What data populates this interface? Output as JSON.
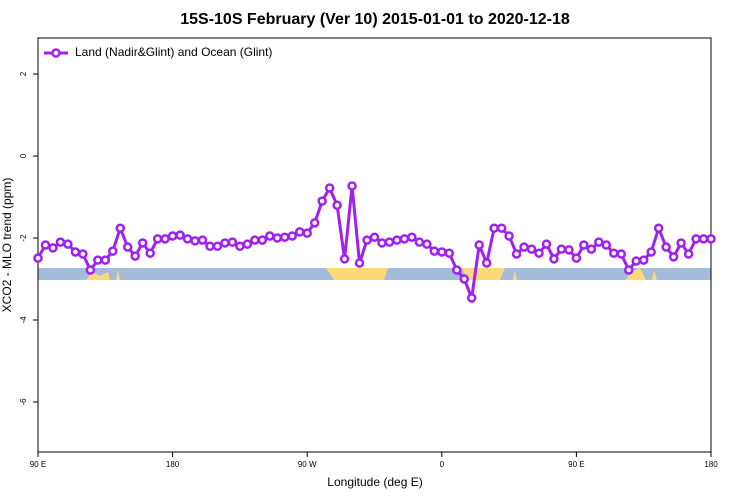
{
  "chart_data": {
    "type": "line",
    "title": "15S-10S February (Ver 10)   2015-01-01 to 2020-12-18",
    "x_label": "Longitude (deg E)",
    "y_label": "XCO2 - MLO trend (ppm)",
    "xlim": [
      90,
      540
    ],
    "ylim": [
      -7.22,
      2.88
    ],
    "xticks": [
      {
        "value": 90,
        "label": "90 E"
      },
      180,
      {
        "value": 270,
        "label": "90 W"
      },
      {
        "value": 360,
        "label": "0"
      },
      {
        "value": 450,
        "label": "90 E"
      },
      180
    ],
    "yticks": [
      2,
      0,
      -2,
      -4,
      -6
    ],
    "legend": "top-left",
    "x": [
      90,
      95,
      100,
      105,
      110,
      115,
      120,
      125,
      130,
      135,
      140,
      145,
      150,
      155,
      160,
      165,
      170,
      175,
      180,
      185,
      190,
      195,
      200,
      205,
      210,
      215,
      220,
      225,
      230,
      235,
      240,
      245,
      250,
      255,
      260,
      265,
      270,
      275,
      280,
      285,
      290,
      295,
      300,
      305,
      310,
      315,
      320,
      325,
      330,
      335,
      340,
      345,
      350,
      355,
      360,
      365,
      370,
      375,
      380,
      385,
      390,
      395,
      400,
      405,
      410,
      415,
      420,
      425,
      430,
      435,
      440,
      445,
      450,
      455,
      460,
      465,
      470,
      475,
      480,
      485,
      490,
      495,
      500,
      505,
      510,
      515,
      520,
      525,
      530,
      535,
      540
    ],
    "series": [
      {
        "name": "Land (Nadir&Glint) and Ocean (Glint)",
        "color": "#a020f0",
        "values": [
          -2.49,
          -2.17,
          -2.24,
          -2.1,
          -2.15,
          -2.34,
          -2.39,
          -2.78,
          -2.54,
          -2.54,
          -2.32,
          -1.76,
          -2.22,
          -2.44,
          -2.12,
          -2.37,
          -2.02,
          -2.02,
          -1.95,
          -1.93,
          -2.02,
          -2.07,
          -2.05,
          -2.2,
          -2.2,
          -2.12,
          -2.1,
          -2.2,
          -2.15,
          -2.05,
          -2.05,
          -1.95,
          -2.0,
          -1.98,
          -1.95,
          -1.85,
          -1.88,
          -1.63,
          -1.1,
          -0.78,
          -1.2,
          -2.51,
          -0.73,
          -2.61,
          -2.05,
          -1.98,
          -2.12,
          -2.1,
          -2.05,
          -2.02,
          -1.98,
          -2.1,
          -2.15,
          -2.32,
          -2.34,
          -2.37,
          -2.78,
          -3.0,
          -3.46,
          -2.17,
          -2.61,
          -1.76,
          -1.76,
          -1.95,
          -2.39,
          -2.22,
          -2.27,
          -2.37,
          -2.15,
          -2.51,
          -2.27,
          -2.29,
          -2.49,
          -2.17,
          -2.27,
          -2.1,
          -2.17,
          -2.37,
          -2.39,
          -2.78,
          -2.56,
          -2.54,
          -2.34,
          -1.76,
          -2.22,
          -2.46,
          -2.12,
          -2.39,
          -2.02,
          -2.02,
          -2.02
        ]
      }
    ]
  }
}
